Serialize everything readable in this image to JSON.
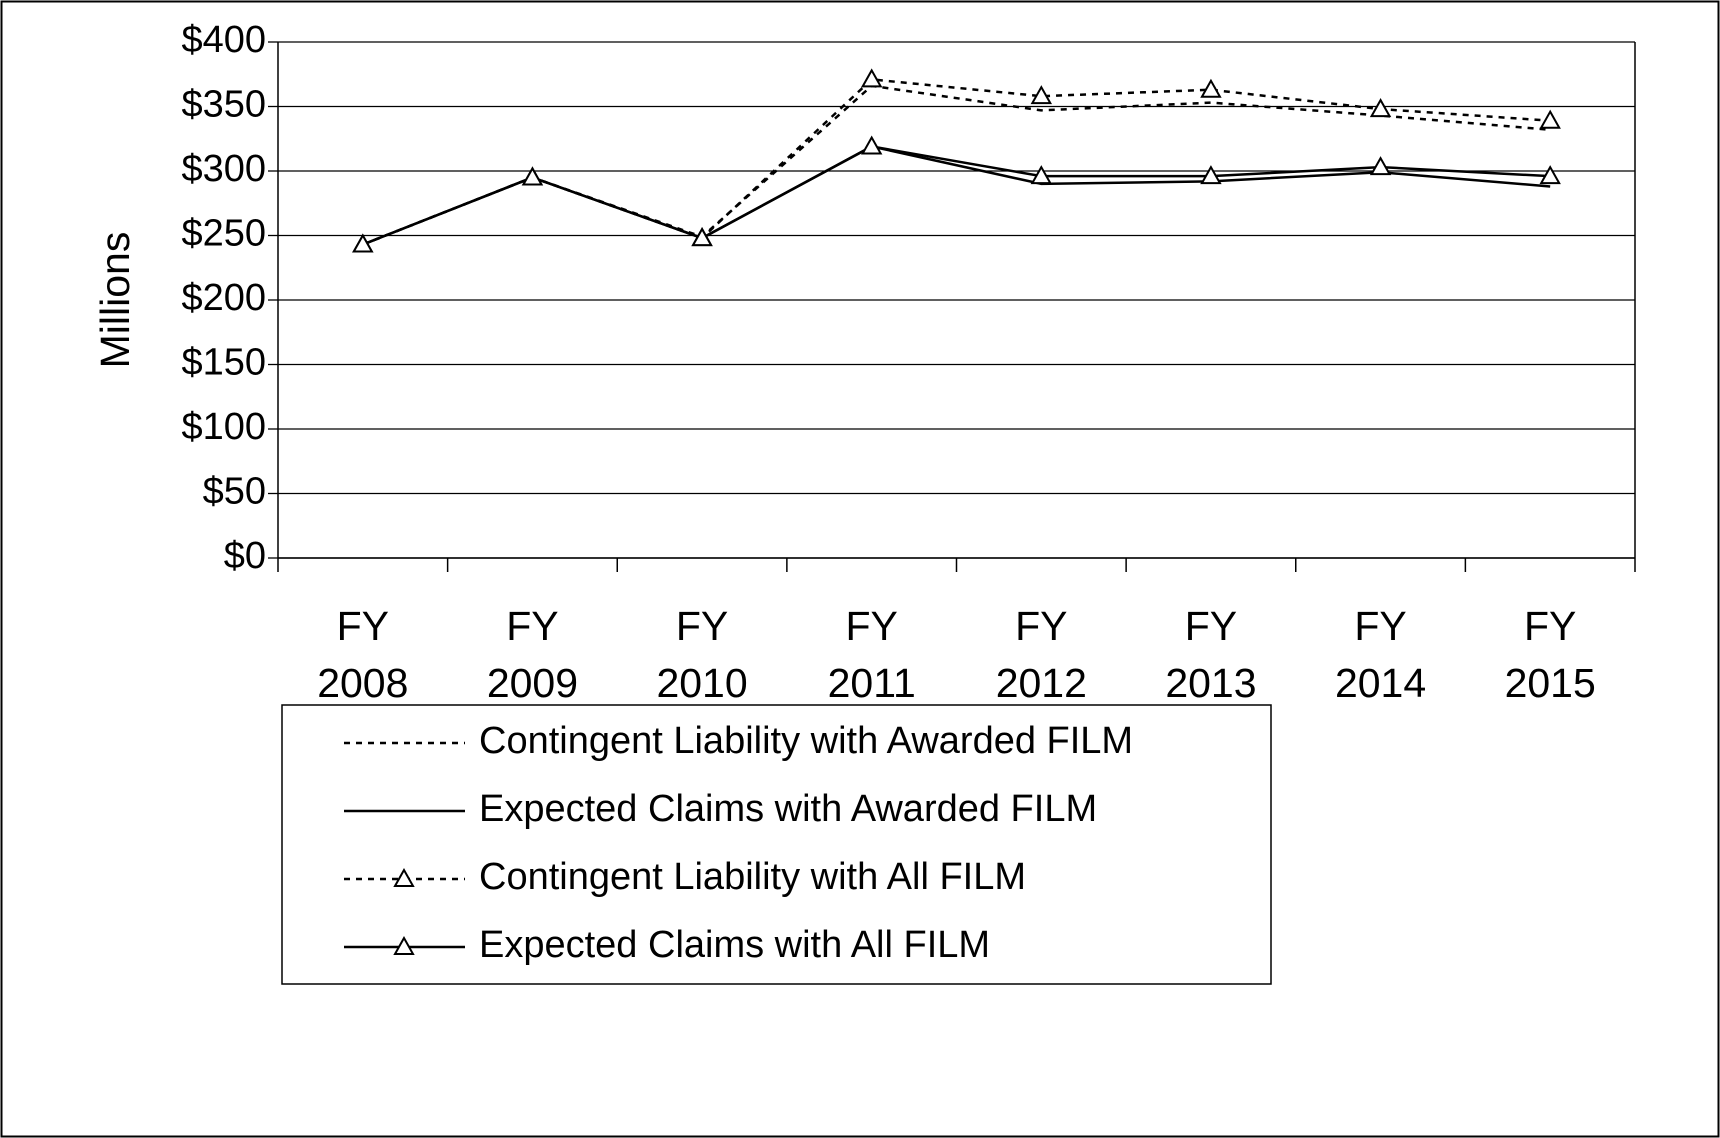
{
  "chart_data": {
    "type": "line",
    "y_label": "Millions",
    "categories": [
      "FY 2008",
      "FY 2009",
      "FY 2010",
      "FY 2011",
      "FY 2012",
      "FY 2013",
      "FY 2014",
      "FY 2015"
    ],
    "series": [
      {
        "name": "Contingent Liability with Awarded FILM",
        "color": "#000000",
        "dash": true,
        "marker": "none",
        "values": [
          243,
          295,
          249,
          366,
          347,
          353,
          343,
          332
        ]
      },
      {
        "name": "Expected Claims with Awarded FILM",
        "color": "#000000",
        "dash": false,
        "marker": "none",
        "values": [
          243,
          295,
          248,
          319,
          290,
          292,
          299,
          288
        ]
      },
      {
        "name": "Contingent Liability with All FILM",
        "color": "#000000",
        "dash": true,
        "marker": "triangle",
        "values": [
          243,
          295,
          248,
          371,
          358,
          363,
          348,
          339
        ]
      },
      {
        "name": "Expected Claims with All FILM",
        "color": "#000000",
        "dash": false,
        "marker": "triangle",
        "values": [
          243,
          295,
          248,
          319,
          296,
          296,
          303,
          296
        ]
      }
    ],
    "ylim": [
      0,
      400
    ],
    "yticks": [
      {
        "value": 0,
        "label": "$0"
      },
      {
        "value": 50,
        "label": "$50"
      },
      {
        "value": 100,
        "label": "$100"
      },
      {
        "value": 150,
        "label": "$150"
      },
      {
        "value": 200,
        "label": "$200"
      },
      {
        "value": 250,
        "label": "$250"
      },
      {
        "value": 300,
        "label": "$300"
      },
      {
        "value": 350,
        "label": "$350"
      },
      {
        "value": 400,
        "label": "$400"
      }
    ],
    "grid": true
  }
}
